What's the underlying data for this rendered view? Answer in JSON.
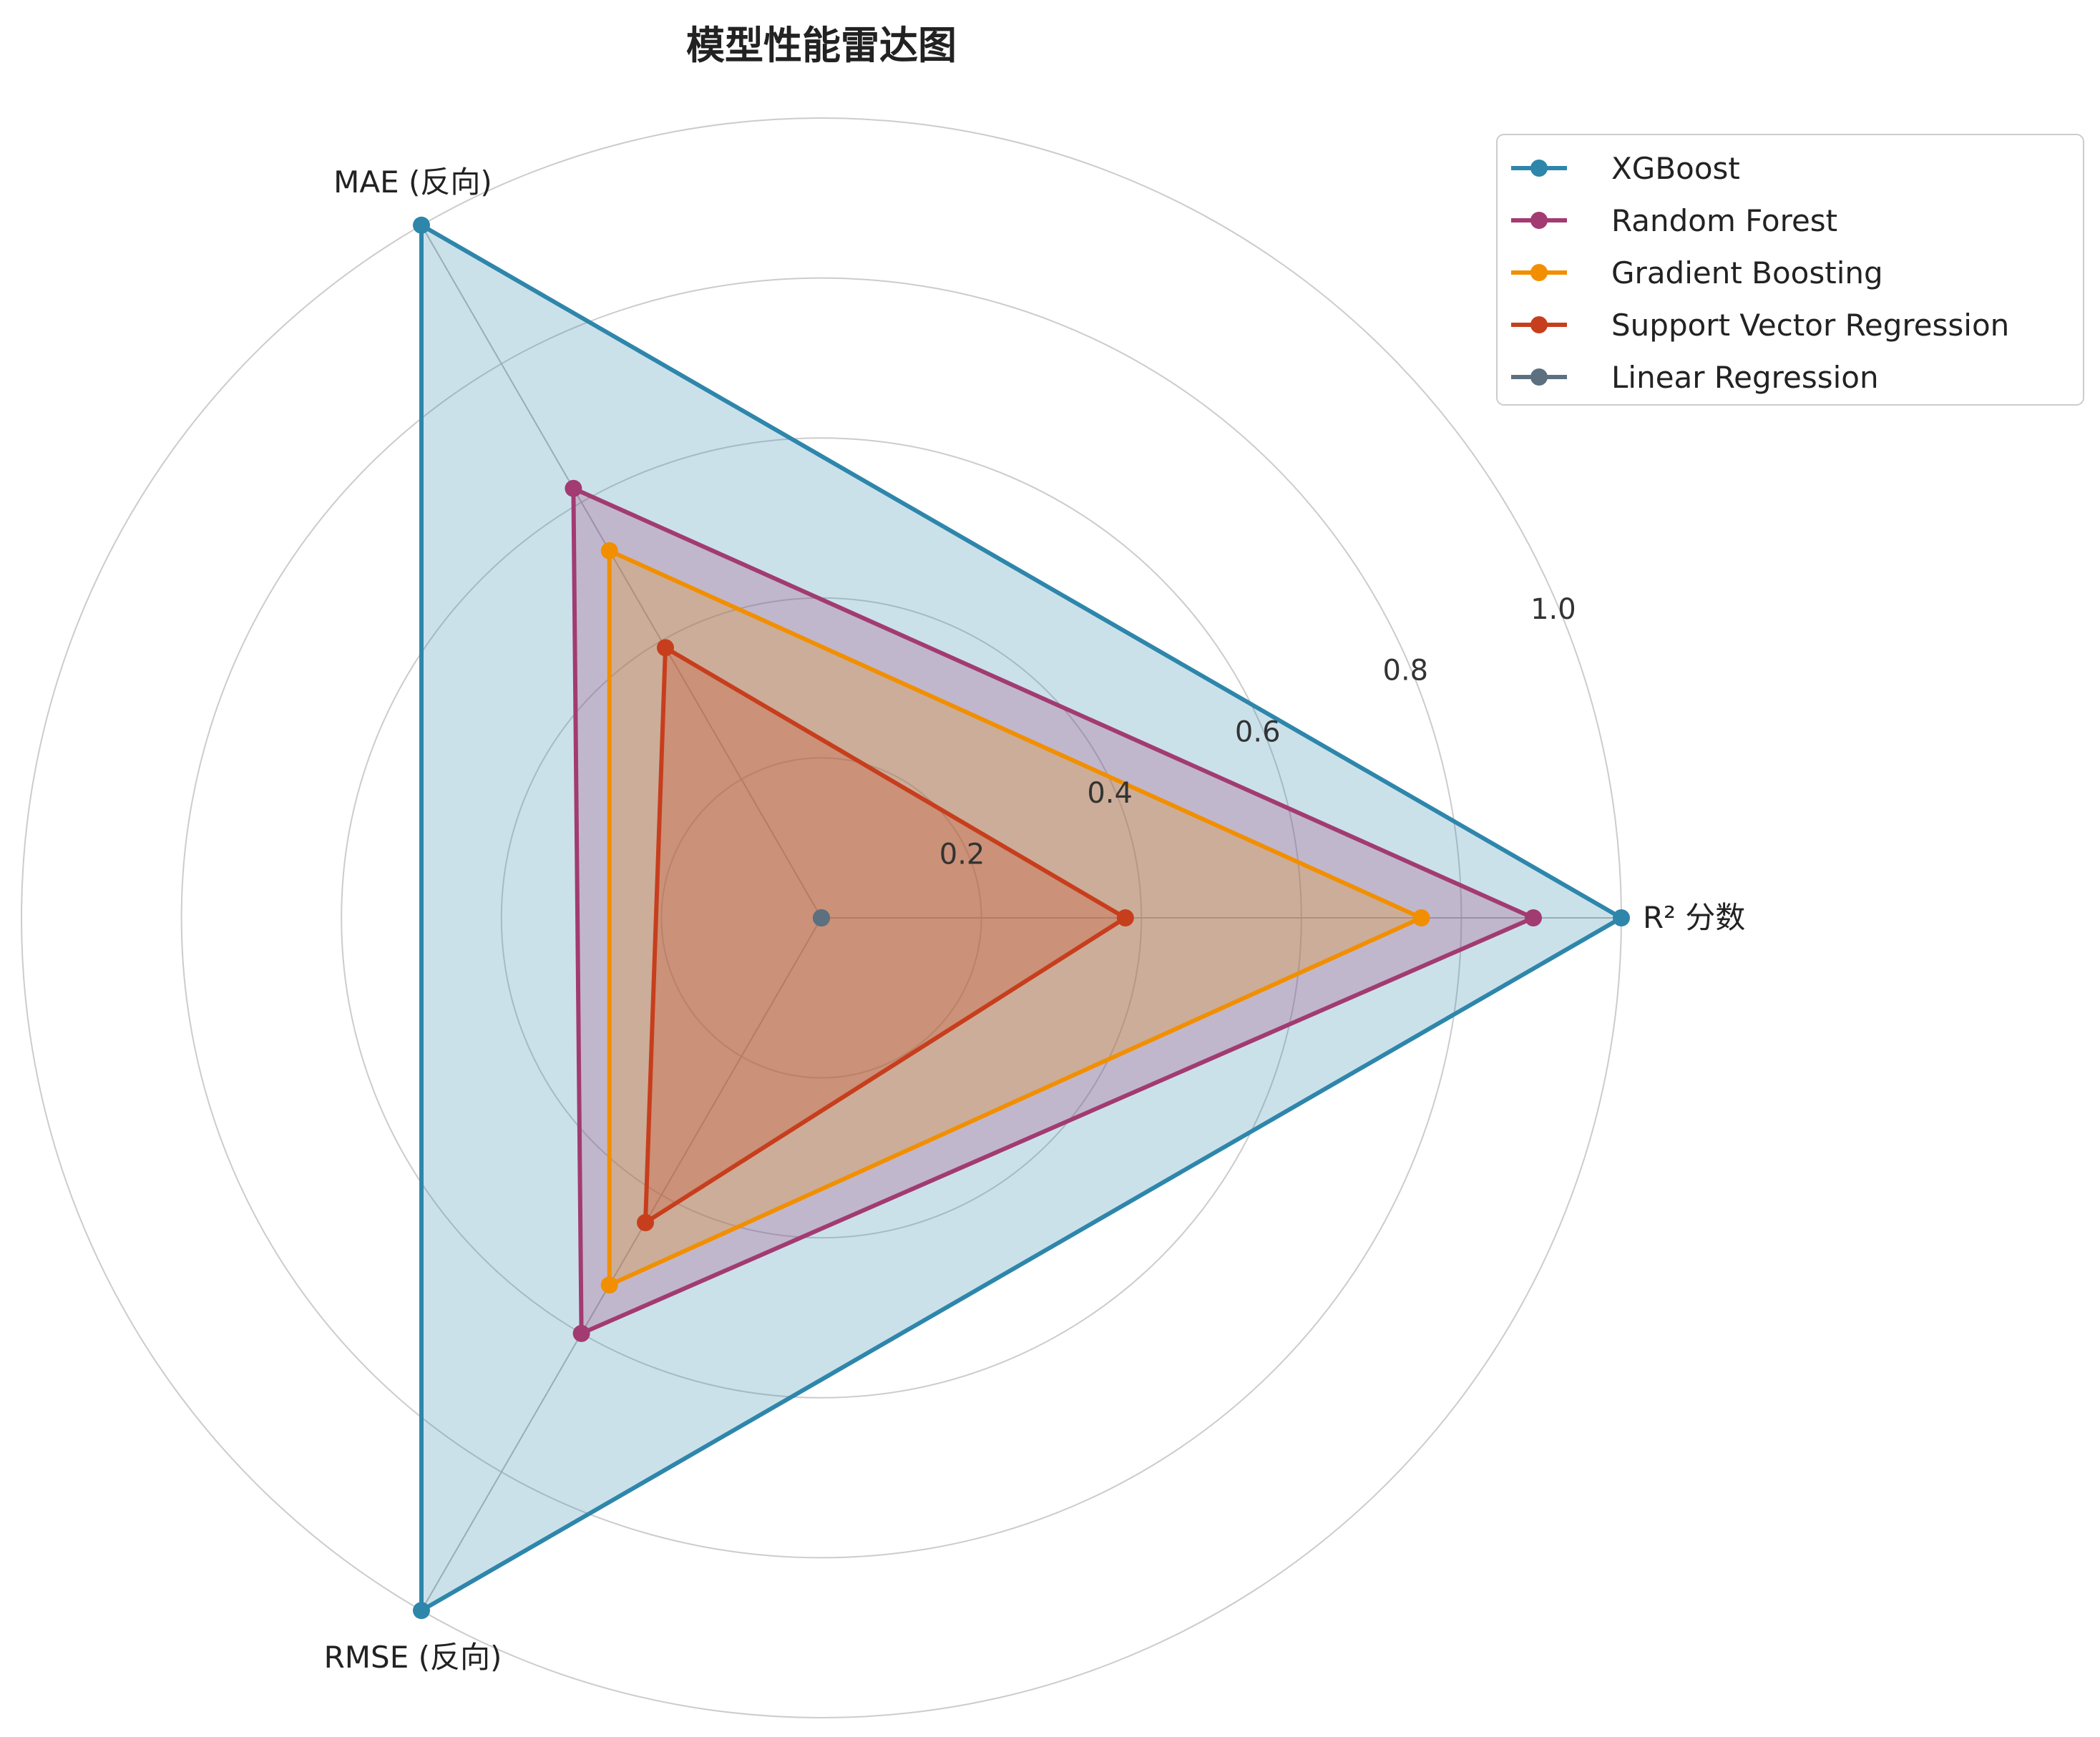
{
  "chart_data": {
    "type": "radar",
    "title": "模型性能雷达图",
    "axes": [
      "R² 分数",
      "MAE (反向)",
      "RMSE (反向)"
    ],
    "rlim": [
      0,
      1.0
    ],
    "r_ticks": [
      "0.2",
      "0.4",
      "0.6",
      "0.8",
      "1.0"
    ],
    "grid": true,
    "legend_position": "top-right",
    "series": [
      {
        "name": "XGBoost",
        "color": "#2E86AB",
        "fill_opacity": 0.25,
        "values": [
          1.0,
          1.0,
          1.0
        ]
      },
      {
        "name": "Random Forest",
        "color": "#A23B72",
        "fill_opacity": 0.25,
        "values": [
          0.89,
          0.62,
          0.6
        ]
      },
      {
        "name": "Gradient Boosting",
        "color": "#F18F01",
        "fill_opacity": 0.25,
        "values": [
          0.75,
          0.53,
          0.53
        ]
      },
      {
        "name": "Support Vector Regression",
        "color": "#C73E1D",
        "fill_opacity": 0.25,
        "values": [
          0.38,
          0.39,
          0.44
        ]
      },
      {
        "name": "Linear Regression",
        "color": "#5C7080",
        "fill_opacity": 0.25,
        "values": [
          0.0,
          0.0,
          0.0
        ]
      }
    ]
  }
}
